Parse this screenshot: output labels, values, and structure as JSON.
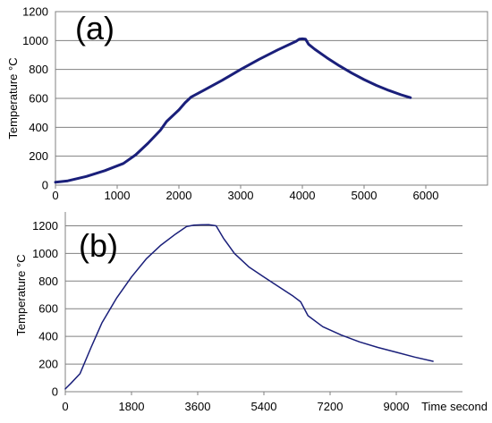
{
  "chart_data": [
    {
      "type": "line",
      "panel_label": "(a)",
      "xlabel": "",
      "ylabel": "Temperature °C",
      "xlim": [
        0,
        7000
      ],
      "ylim": [
        0,
        1200
      ],
      "x_ticks": [
        "0",
        "1000",
        "2000",
        "3000",
        "4000",
        "5000",
        "6000"
      ],
      "y_ticks": [
        "0",
        "200",
        "400",
        "600",
        "800",
        "1000",
        "1200"
      ],
      "grid": "horizontal",
      "line_color": "#1a1f7a",
      "series": [
        {
          "x": [
            0,
            200,
            500,
            800,
            1100,
            1300,
            1500,
            1700,
            1800,
            1900,
            2000,
            2100,
            2200,
            2400,
            2700,
            3000,
            3300,
            3600,
            3900,
            3950,
            4000,
            4050,
            4100,
            4200,
            4400,
            4600,
            4800,
            5000,
            5200,
            5400,
            5600,
            5750
          ],
          "y": [
            20,
            30,
            60,
            100,
            150,
            210,
            290,
            380,
            440,
            480,
            520,
            570,
            610,
            655,
            725,
            800,
            870,
            935,
            995,
            1010,
            1012,
            1010,
            975,
            940,
            880,
            825,
            775,
            730,
            690,
            655,
            625,
            605
          ]
        }
      ]
    },
    {
      "type": "line",
      "panel_label": "(b)",
      "xlabel": "Time second",
      "ylabel": "Temperature °C",
      "xlim": [
        0,
        10800
      ],
      "ylim": [
        0,
        1300
      ],
      "x_ticks": [
        "0",
        "1800",
        "3600",
        "5400",
        "7200",
        "9000"
      ],
      "x_tick_values": [
        0,
        1800,
        3600,
        5400,
        7200,
        9000
      ],
      "y_ticks": [
        "0",
        "200",
        "400",
        "600",
        "800",
        "1000",
        "1200"
      ],
      "grid": "horizontal",
      "line_color": "#1a1f7a",
      "series": [
        {
          "x": [
            0,
            150,
            400,
            700,
            1000,
            1400,
            1800,
            2200,
            2600,
            3000,
            3300,
            3500,
            3700,
            3900,
            4100,
            4300,
            4600,
            5000,
            5400,
            5800,
            6200,
            6400,
            6600,
            7000,
            7500,
            8000,
            8500,
            9000,
            9500,
            10000
          ],
          "y": [
            20,
            60,
            130,
            320,
            500,
            680,
            830,
            960,
            1060,
            1140,
            1195,
            1205,
            1207,
            1208,
            1200,
            1110,
            1000,
            900,
            830,
            760,
            690,
            650,
            550,
            470,
            410,
            360,
            320,
            285,
            250,
            220
          ]
        }
      ]
    }
  ]
}
